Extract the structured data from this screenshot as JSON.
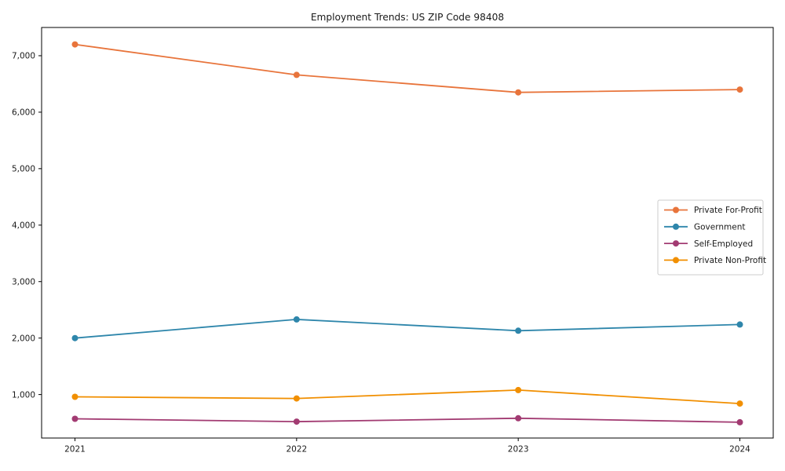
{
  "chart_data": {
    "type": "line",
    "title": "Employment Trends: US ZIP Code 98408",
    "xlabel": "",
    "ylabel": "",
    "x": [
      "2021",
      "2022",
      "2023",
      "2024"
    ],
    "series": [
      {
        "name": "Private For-Profit",
        "color": "#e8743b",
        "values": [
          7200,
          6660,
          6350,
          6400
        ]
      },
      {
        "name": "Government",
        "color": "#2e86ab",
        "values": [
          2000,
          2330,
          2130,
          2240
        ]
      },
      {
        "name": "Self-Employed",
        "color": "#a23b72",
        "values": [
          570,
          520,
          580,
          510
        ]
      },
      {
        "name": "Private Non-Profit",
        "color": "#f18f01",
        "values": [
          960,
          930,
          1080,
          840
        ]
      }
    ],
    "yticks": {
      "values": [
        1000,
        2000,
        3000,
        4000,
        5000,
        6000,
        7000
      ],
      "labels": [
        "1,000",
        "2,000",
        "3,000",
        "4,000",
        "5,000",
        "6,000",
        "7,000"
      ]
    },
    "ylim": [
      230,
      7500
    ],
    "grid": false,
    "legend_position": "center-right",
    "marker": "circle",
    "colors": {
      "spine": "#000000",
      "text": "#1a1a1a",
      "legend_border": "#cccccc",
      "background": "#ffffff"
    }
  }
}
